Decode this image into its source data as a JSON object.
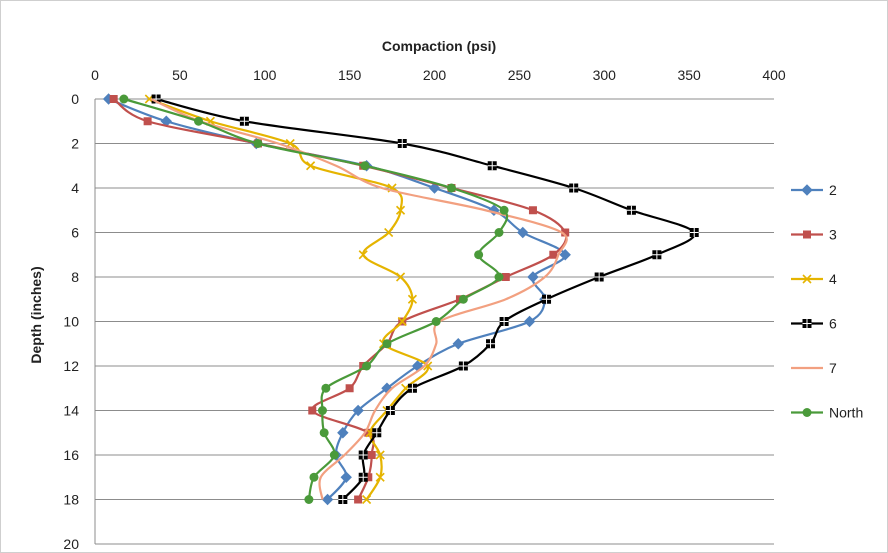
{
  "chart_data": {
    "type": "line",
    "title": "",
    "xlabel": "Compaction (psi)",
    "ylabel": "Depth (inches)",
    "xlim": [
      0,
      400
    ],
    "ylim": [
      0,
      20
    ],
    "x_axis_position": "top",
    "y_axis_inverted": true,
    "x_ticks": [
      0,
      50,
      100,
      150,
      200,
      250,
      300,
      350,
      400
    ],
    "y_ticks": [
      0,
      2,
      4,
      6,
      8,
      10,
      12,
      14,
      16,
      18,
      20
    ],
    "grid": "horizontal",
    "legend_position": "right",
    "depths": [
      0,
      1,
      2,
      3,
      4,
      5,
      6,
      7,
      8,
      9,
      10,
      11,
      12,
      13,
      14,
      15,
      16,
      17,
      18
    ],
    "series": [
      {
        "name": "2",
        "color": "#4f81bd",
        "marker": "diamond",
        "values": [
          8,
          42,
          95,
          160,
          200,
          235,
          252,
          277,
          258,
          265,
          256,
          214,
          190,
          172,
          155,
          146,
          142,
          148,
          137
        ]
      },
      {
        "name": "3",
        "color": "#c0504d",
        "marker": "square",
        "values": [
          11,
          31,
          96,
          158,
          210,
          258,
          277,
          270,
          242,
          215,
          181,
          172,
          158,
          150,
          128,
          161,
          163,
          161,
          155
        ]
      },
      {
        "name": "4",
        "color": "#e5b400",
        "marker": "x",
        "values": [
          32,
          68,
          115,
          127,
          175,
          180,
          173,
          158,
          180,
          187,
          181,
          170,
          196,
          183,
          172,
          162,
          168,
          168,
          160
        ]
      },
      {
        "name": "6",
        "color": "#000000",
        "marker": "square-black",
        "values": [
          36,
          88,
          181,
          234,
          282,
          316,
          353,
          331,
          297,
          266,
          241,
          233,
          217,
          187,
          174,
          166,
          158,
          158,
          146
        ]
      },
      {
        "name": "7",
        "color": "#f2a080",
        "marker": "none",
        "values": [
          33,
          62,
          108,
          142,
          169,
          230,
          275,
          273,
          265,
          242,
          203,
          201,
          194,
          175,
          165,
          159,
          147,
          133,
          134
        ]
      },
      {
        "name": "North",
        "color": "#4a9a3a",
        "marker": "circle",
        "values": [
          17,
          61,
          96,
          159,
          210,
          241,
          238,
          226,
          238,
          217,
          201,
          172,
          160,
          136,
          134,
          135,
          141,
          129,
          126
        ]
      }
    ]
  }
}
